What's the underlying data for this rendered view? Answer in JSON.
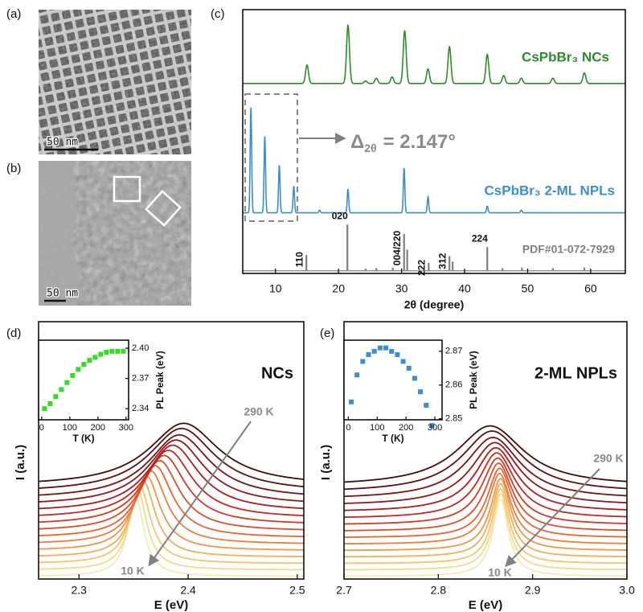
{
  "panels": [
    "(a)",
    "(b)",
    "(c)",
    "(d)",
    "(e)"
  ],
  "images": [
    {
      "scale_bar": "50 nm"
    },
    {
      "scale_bar": "50 nm"
    }
  ],
  "chart_data": [
    {
      "type": "peaks",
      "xlabel": "2θ (degree)",
      "xlim": [
        4.8,
        65.5
      ],
      "xticks": [
        10,
        20,
        30,
        40,
        50,
        60
      ],
      "ylim": [
        0,
        100
      ],
      "annotation": {
        "symbol": "Δ",
        "subscript": "2θ",
        "text": "= 2.147°"
      },
      "series": [
        {
          "name": "CsPbBr₃ NCs",
          "color": "#2b8c2b",
          "style": "line",
          "offset": 72,
          "fwhm": 0.55,
          "x": [
            15,
            21.5,
            24.3,
            26,
            28.5,
            30.5,
            34.2,
            37.6,
            43.6,
            46.2,
            49,
            54,
            59
          ],
          "values": [
            7,
            22,
            1,
            2,
            2.5,
            20,
            5.5,
            14,
            11,
            3,
            2,
            2,
            4
          ]
        },
        {
          "name": "CsPbBr₃ 2-ML NPLs",
          "color": "#3d8fca",
          "style": "line",
          "offset": 23,
          "fwhm": 0.28,
          "x": [
            6.1,
            8.3,
            10.6,
            12.9,
            17,
            21.5,
            30.4,
            34.2,
            43.6,
            49
          ],
          "values": [
            40,
            29,
            18,
            10,
            1,
            9,
            17,
            6,
            2.5,
            1
          ]
        },
        {
          "name": "PDF#01-072-7929",
          "color": "#808080",
          "style": "stem",
          "offset": 1,
          "x": [
            14.9,
            21.4,
            24.3,
            26,
            28.6,
            30.4,
            30.9,
            34.3,
            37.6,
            38.1,
            43.6,
            46,
            49.1,
            54,
            59
          ],
          "values": [
            6,
            17.5,
            0.8,
            1,
            1.2,
            14,
            8,
            3,
            5.5,
            3.5,
            9,
            1,
            1.2,
            1,
            1.2
          ],
          "labels": [
            "110",
            "020",
            null,
            null,
            null,
            "004/220",
            null,
            "222",
            "312",
            null,
            "224",
            null,
            null,
            null,
            null
          ]
        }
      ]
    },
    {
      "type": "spectra",
      "xlabel": "E (eV)",
      "ylabel": "I (a.u.)",
      "label": "NCs",
      "annotations": [
        "290 K",
        "10 K"
      ],
      "xlim": [
        2.263,
        2.506
      ],
      "xticks": [
        2.3,
        2.4,
        2.5
      ],
      "ylim": [
        0,
        100
      ],
      "series": {
        "colors": [
          "#f7e9b5",
          "#f6d98e",
          "#f4c56e",
          "#f2ae58",
          "#ef9648",
          "#ec7e3c",
          "#e66633",
          "#dd4f2c",
          "#d23a26",
          "#c22a22",
          "#ab1e1e",
          "#921919",
          "#781414",
          "#5e1010",
          "#440b0b"
        ],
        "centers": [
          2.352,
          2.354,
          2.356,
          2.359,
          2.362,
          2.366,
          2.37,
          2.374,
          2.378,
          2.382,
          2.386,
          2.389,
          2.392,
          2.394,
          2.396
        ],
        "fwhm": [
          0.018,
          0.02,
          0.023,
          0.026,
          0.03,
          0.034,
          0.038,
          0.043,
          0.048,
          0.053,
          0.058,
          0.063,
          0.068,
          0.073,
          0.078
        ],
        "amplitudes": [
          31,
          30.5,
          30,
          29.5,
          29,
          28.5,
          28,
          27.5,
          27,
          26.5,
          26,
          25.5,
          25,
          25,
          24.5
        ],
        "offsets": [
          1,
          3.5,
          6,
          8.5,
          11,
          13.5,
          16,
          18.5,
          21,
          23.5,
          26,
          28.5,
          31,
          33.5,
          36
        ]
      }
    },
    {
      "type": "spectra",
      "xlabel": "E (eV)",
      "ylabel": "I (a.u.)",
      "label": "2-ML NPLs",
      "annotations": [
        "290 K",
        "10 K"
      ],
      "xlim": [
        2.7,
        3.0
      ],
      "xticks": [
        2.7,
        2.8,
        2.9,
        {
          "value": 3,
          "label": "3.0"
        }
      ],
      "ylim": [
        0,
        100
      ],
      "series": {
        "colors": [
          "#f7e9b5",
          "#f6d98e",
          "#f4c56e",
          "#f2ae58",
          "#ef9648",
          "#ec7e3c",
          "#e66633",
          "#dd4f2c",
          "#d23a26",
          "#c22a22",
          "#ab1e1e",
          "#921919",
          "#781414",
          "#5e1010",
          "#440b0b"
        ],
        "centers": [
          2.866,
          2.866,
          2.866,
          2.866,
          2.866,
          2.865,
          2.865,
          2.864,
          2.863,
          2.862,
          2.861,
          2.86,
          2.858,
          2.857,
          2.855
        ],
        "fwhm": [
          0.02,
          0.021,
          0.022,
          0.024,
          0.026,
          0.029,
          0.032,
          0.036,
          0.041,
          0.047,
          0.054,
          0.062,
          0.07,
          0.078,
          0.086
        ],
        "amplitudes": [
          30,
          29.5,
          29,
          28.5,
          28,
          27.5,
          27,
          26.5,
          26,
          25.5,
          25,
          24.5,
          24,
          24,
          23.5
        ],
        "offsets": [
          1,
          3.5,
          6,
          8.5,
          11,
          13.5,
          16,
          18.5,
          21,
          23.5,
          26,
          28.5,
          31,
          33.5,
          36
        ]
      }
    },
    {
      "type": "scatter",
      "xlabel": "T (K)",
      "ylabel": "PL Peak (eV)",
      "color": "#33dd22",
      "xlim": [
        -11,
        309
      ],
      "xticks": [
        0,
        100,
        200,
        300
      ],
      "ylim": [
        2.329,
        2.408
      ],
      "yticks": [
        {
          "value": 2.34,
          "label": "2.34"
        },
        {
          "value": 2.37,
          "label": "2.37"
        },
        {
          "value": 2.4,
          "label": "2.40"
        }
      ],
      "x": [
        10,
        30,
        50,
        70,
        90,
        110,
        130,
        150,
        170,
        190,
        210,
        230,
        250,
        270,
        290
      ],
      "values": [
        2.34,
        2.345,
        2.352,
        2.359,
        2.366,
        2.373,
        2.379,
        2.384,
        2.388,
        2.391,
        2.394,
        2.396,
        2.397,
        2.397,
        2.397
      ]
    },
    {
      "type": "scatter",
      "xlabel": "T (K)",
      "ylabel": "PL Peak (eV)",
      "color": "#3a8fd0",
      "xlim": [
        -15,
        325
      ],
      "xticks": [
        0,
        100,
        200,
        300
      ],
      "ylim": [
        2.8497,
        2.8733
      ],
      "yticks": [
        2.85,
        2.86,
        2.87
      ],
      "x": [
        10,
        30,
        50,
        70,
        90,
        110,
        130,
        150,
        170,
        190,
        210,
        230,
        250,
        270,
        290
      ],
      "values": [
        2.855,
        2.863,
        2.867,
        2.869,
        2.87,
        2.871,
        2.871,
        2.87,
        2.869,
        2.867,
        2.865,
        2.862,
        2.858,
        2.854,
        2.848
      ]
    }
  ]
}
